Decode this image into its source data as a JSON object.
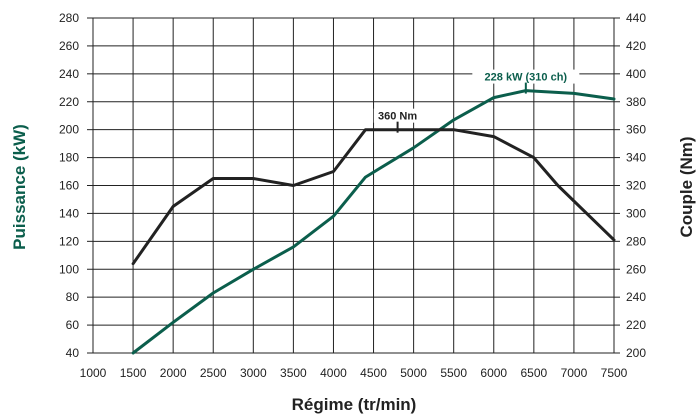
{
  "chart_data": {
    "type": "line",
    "xlabel": "Régime (tr/min)",
    "ylabel_left": "Puissance (kW)",
    "ylabel_right": "Couple (Nm)",
    "x_ticks": [
      1000,
      1500,
      2000,
      2500,
      3000,
      3500,
      4000,
      4500,
      5000,
      5500,
      6000,
      6500,
      7000,
      7500
    ],
    "xlim": [
      1000,
      7500
    ],
    "ylim_left": [
      40,
      280
    ],
    "ylim_right": [
      200,
      440
    ],
    "y_left_ticks": [
      40,
      60,
      80,
      100,
      120,
      140,
      160,
      180,
      200,
      220,
      240,
      260,
      280
    ],
    "y_right_ticks": [
      200,
      220,
      240,
      260,
      280,
      300,
      320,
      340,
      360,
      380,
      400,
      420,
      440
    ],
    "grid": true,
    "series": [
      {
        "axis": "left",
        "color": "#0b5e4c",
        "x": [
          1500,
          2000,
          2500,
          3000,
          3500,
          4000,
          4400,
          5000,
          5500,
          6000,
          6400,
          7000,
          7500
        ],
        "y": [
          40,
          62,
          83,
          100,
          116,
          138,
          166,
          187,
          207,
          223,
          228,
          226,
          222
        ]
      },
      {
        "axis": "right",
        "color": "#222222",
        "x": [
          1500,
          2000,
          2500,
          3000,
          3500,
          4000,
          4400,
          5500,
          6000,
          6500,
          6800,
          7500
        ],
        "y": [
          264,
          305,
          325,
          325,
          320,
          330,
          360,
          360,
          355,
          340,
          320,
          281
        ]
      }
    ],
    "annotations": [
      {
        "text": "360 Nm",
        "axis": "right",
        "x": 4800,
        "y": 360,
        "color": "#222222"
      },
      {
        "text": "228 kW (310 ch)",
        "axis": "left",
        "x": 6400,
        "y": 228,
        "color": "#0b5e4c"
      }
    ]
  }
}
